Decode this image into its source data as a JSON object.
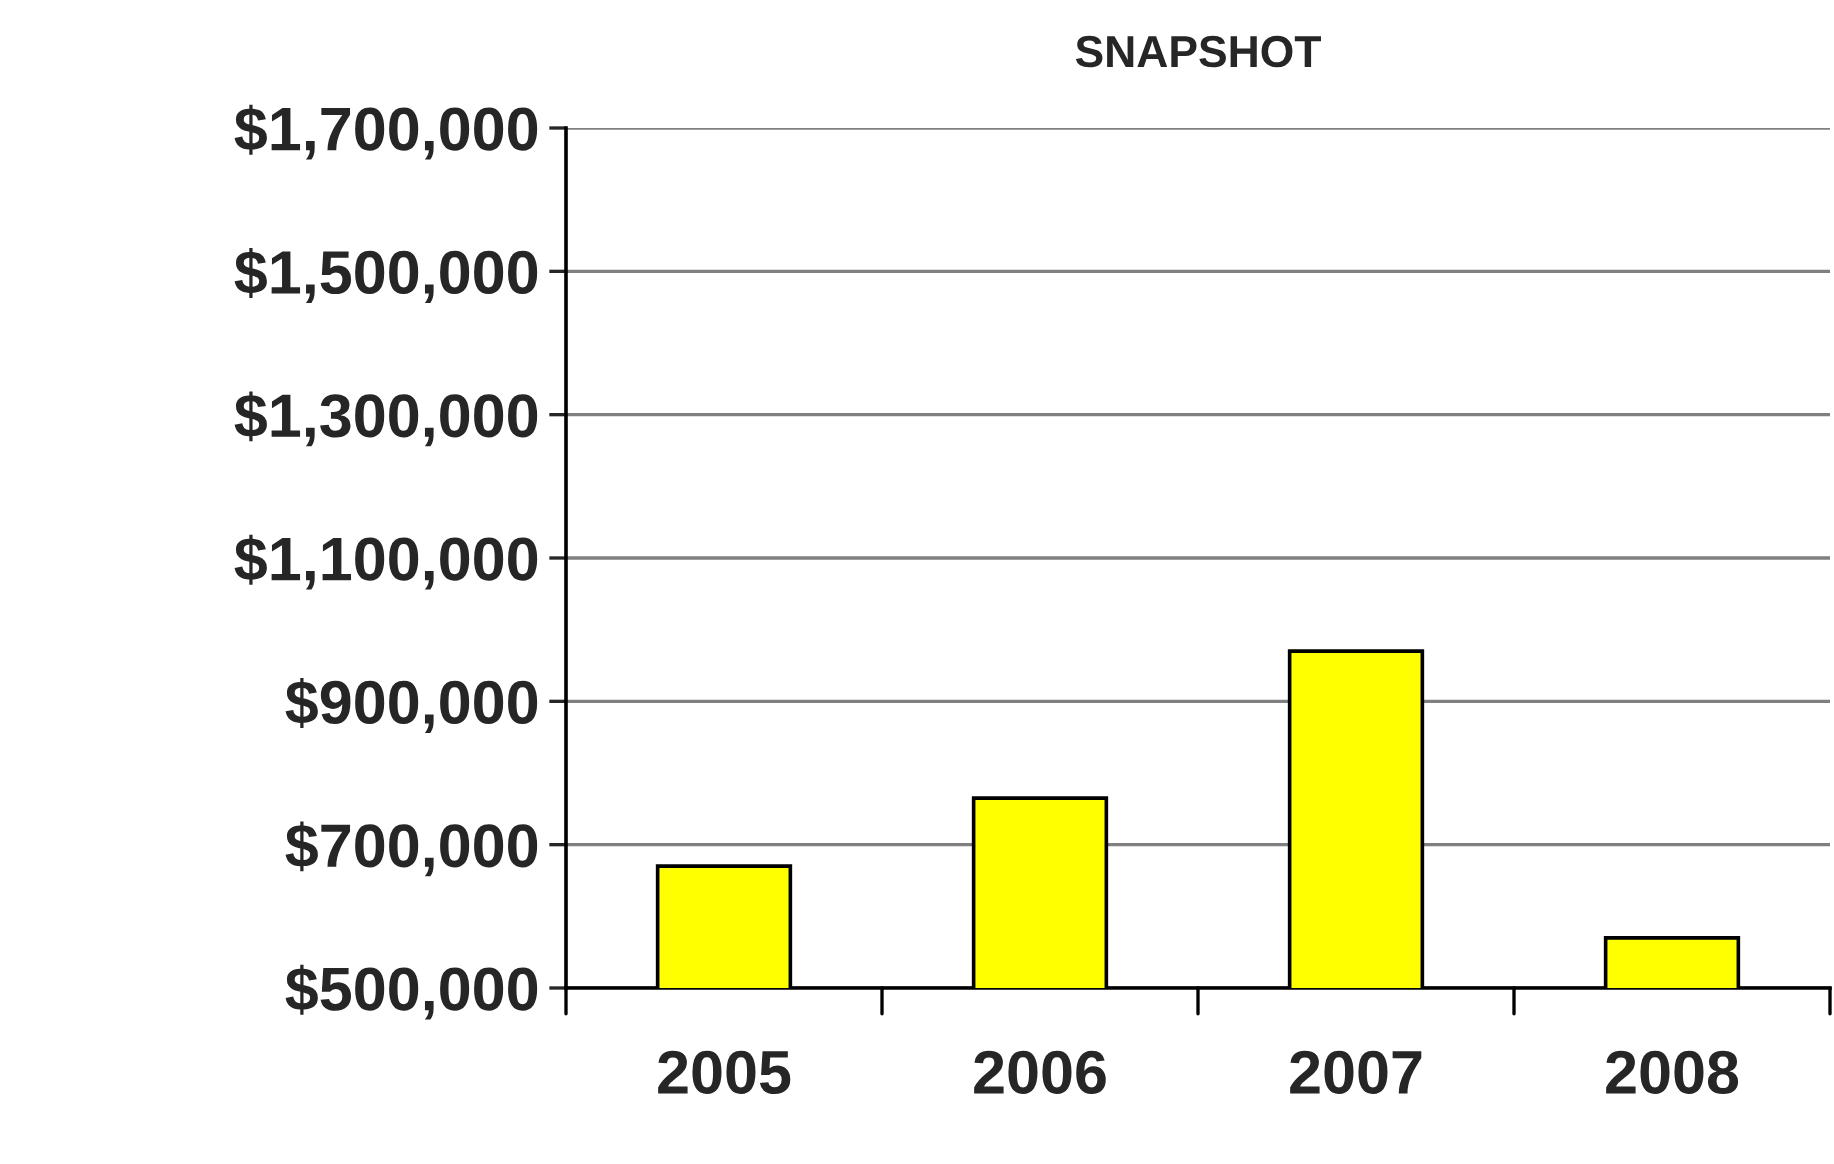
{
  "chart_data": {
    "type": "bar",
    "title": "SNAPSHOT",
    "categories": [
      "2005",
      "2006",
      "2007",
      "2008"
    ],
    "values": [
      670000,
      765000,
      970000,
      570000
    ],
    "color": "#ffff00",
    "ylim": [
      500000,
      1700000
    ],
    "yticks": [
      {
        "value": 500000,
        "label": "$500,000"
      },
      {
        "value": 700000,
        "label": "$700,000"
      },
      {
        "value": 900000,
        "label": "$900,000"
      },
      {
        "value": 1100000,
        "label": "$1,100,000"
      },
      {
        "value": 1300000,
        "label": "$1,300,000"
      },
      {
        "value": 1500000,
        "label": "$1,500,000"
      },
      {
        "value": 1700000,
        "label": "$1,700,000"
      }
    ],
    "grid": "y",
    "legend": false
  }
}
